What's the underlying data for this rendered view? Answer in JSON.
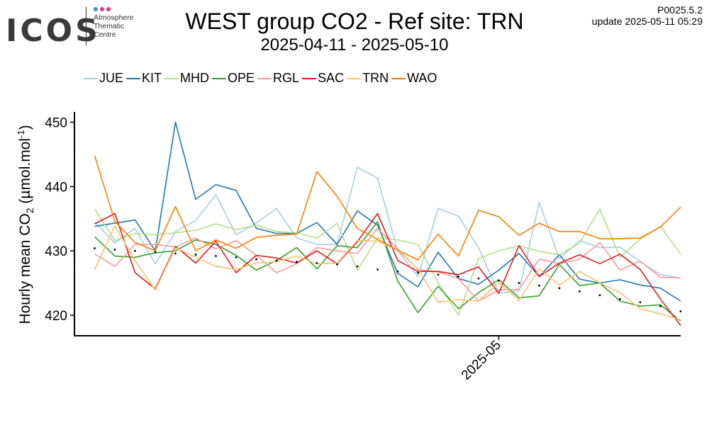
{
  "logo": {
    "wordmark": "ICOS",
    "line1": "Atmosphere",
    "line2": "Thematic",
    "line3": "Centre",
    "dot_colors": [
      "#3a8fd6",
      "#e2347f",
      "#e2347f"
    ]
  },
  "header": {
    "title": "WEST group CO2 - Ref site: TRN",
    "subtitle": "2025-04-11 - 2025-05-10",
    "version": "P0025.5.2",
    "update": "update  2025-05-11 05:29"
  },
  "chart_data": {
    "type": "line",
    "ylabel": "Hourly mean  CO2 (µmol.mol-1)",
    "ylabel_parts": {
      "prefix": "Hourly mean  CO",
      "sub": "2",
      "mid": " (µmol.mol",
      "sup": "-1",
      "suffix": ")"
    },
    "xlabel": "",
    "ylim": [
      416.8,
      451.6
    ],
    "yticks": [
      420,
      430,
      440,
      450
    ],
    "xlim": [
      "2025-04-10",
      "2025-05-10"
    ],
    "xticks": [
      {
        "date": "2025-05-01",
        "label": "2025-05"
      }
    ],
    "grid": false,
    "legend_position": "top",
    "x": [
      "2025-04-11",
      "2025-04-12",
      "2025-04-13",
      "2025-04-14",
      "2025-04-15",
      "2025-04-16",
      "2025-04-17",
      "2025-04-18",
      "2025-04-19",
      "2025-04-20",
      "2025-04-21",
      "2025-04-22",
      "2025-04-23",
      "2025-04-24",
      "2025-04-25",
      "2025-04-26",
      "2025-04-27",
      "2025-04-28",
      "2025-04-29",
      "2025-04-30",
      "2025-05-01",
      "2025-05-02",
      "2025-05-03",
      "2025-05-04",
      "2025-05-05",
      "2025-05-06",
      "2025-05-07",
      "2025-05-08",
      "2025-05-09",
      "2025-05-10"
    ],
    "series": [
      {
        "name": "JUE",
        "color": "#a6cee3",
        "values": [
          434.5,
          431.2,
          433.5,
          428.0,
          433.0,
          434.7,
          438.7,
          432.5,
          434.3,
          436.6,
          432.0,
          431.0,
          431.0,
          443.0,
          441.3,
          430.0,
          426.0,
          436.6,
          435.4,
          430.5,
          423.4,
          423.8,
          437.5,
          428.8,
          431.6,
          430.5,
          430.6,
          428.3,
          426.3,
          425.8
        ]
      },
      {
        "name": "KIT",
        "color": "#1f78b4",
        "values": [
          433.8,
          434.3,
          434.8,
          430.0,
          450.0,
          438.0,
          440.3,
          439.4,
          433.5,
          432.7,
          432.7,
          434.4,
          431.0,
          436.2,
          434.0,
          426.5,
          424.4,
          429.8,
          425.7,
          424.8,
          427.0,
          429.6,
          426.0,
          429.4,
          425.6,
          425.0,
          425.5,
          424.7,
          424.2,
          422.2
        ]
      },
      {
        "name": "MHD",
        "color": "#b2df8a",
        "values": [
          436.5,
          431.6,
          432.7,
          432.5,
          432.8,
          433.2,
          434.2,
          433.3,
          434.0,
          433.0,
          432.8,
          432.0,
          434.3,
          427.0,
          432.0,
          431.7,
          431.0,
          425.0,
          420.0,
          428.8,
          430.0,
          430.8,
          429.9,
          429.4,
          431.2,
          436.5,
          429.0,
          431.8,
          433.8,
          429.5
        ]
      },
      {
        "name": "OPE",
        "color": "#33a02c",
        "values": [
          432.2,
          429.2,
          429.0,
          429.7,
          430.0,
          431.7,
          431.0,
          429.3,
          427.0,
          428.5,
          430.5,
          427.2,
          430.8,
          430.5,
          434.5,
          425.3,
          420.4,
          424.5,
          421.0,
          423.5,
          425.5,
          422.7,
          423.0,
          427.9,
          424.6,
          425.0,
          422.2,
          421.4,
          421.6,
          419.1
        ]
      },
      {
        "name": "RGL",
        "color": "#fb9a99",
        "values": [
          429.5,
          427.6,
          431.0,
          431.0,
          430.6,
          432.0,
          430.3,
          431.6,
          429.3,
          426.6,
          428.0,
          430.5,
          430.0,
          429.6,
          433.5,
          430.3,
          427.1,
          426.7,
          425.7,
          422.2,
          423.9,
          424.0,
          428.7,
          428.0,
          428.7,
          431.3,
          427.0,
          428.4,
          425.9,
          425.8
        ]
      },
      {
        "name": "SAC",
        "color": "#e31a1c",
        "values": [
          434.2,
          435.8,
          426.6,
          424.1,
          430.7,
          428.1,
          431.5,
          426.6,
          429.3,
          428.9,
          428.1,
          430.0,
          428.0,
          431.4,
          435.8,
          428.5,
          426.8,
          426.8,
          426.3,
          427.5,
          423.4,
          430.8,
          426.0,
          428.1,
          429.4,
          428.0,
          429.5,
          427.1,
          422.5,
          418.4
        ]
      },
      {
        "name": "TRN",
        "color": "#fdbf6f",
        "values": [
          427.1,
          433.9,
          428.5,
          423.9,
          430.5,
          429.0,
          427.6,
          427.1,
          428.1,
          428.3,
          429.2,
          428.0,
          428.1,
          431.6,
          431.5,
          430.1,
          427.2,
          422.0,
          422.4,
          422.2,
          425.1,
          422.3,
          427.2,
          424.7,
          426.8,
          425.0,
          423.5,
          421.0,
          420.2,
          419.3
        ]
      },
      {
        "name": "WAO",
        "color": "#ff7f00",
        "values": [
          444.8,
          434.6,
          431.3,
          430.0,
          436.9,
          430.0,
          431.7,
          430.4,
          432.1,
          432.4,
          432.6,
          442.3,
          438.5,
          433.5,
          431.8,
          430.1,
          428.6,
          432.6,
          429.2,
          436.3,
          435.3,
          432.4,
          434.3,
          433.0,
          433.0,
          431.9,
          431.9,
          432.0,
          433.7,
          436.8
        ]
      }
    ],
    "reference_points": {
      "label": "TRN",
      "color": "#000000",
      "values": [
        430.4,
        430.2,
        430.0,
        429.8,
        429.6,
        429.4,
        429.2,
        429.0,
        428.7,
        428.5,
        428.3,
        428.1,
        427.9,
        427.6,
        427.1,
        426.8,
        426.6,
        426.3,
        426.0,
        425.7,
        425.4,
        425.0,
        424.6,
        424.2,
        423.7,
        423.1,
        422.5,
        422.0,
        421.4,
        420.6
      ]
    }
  }
}
